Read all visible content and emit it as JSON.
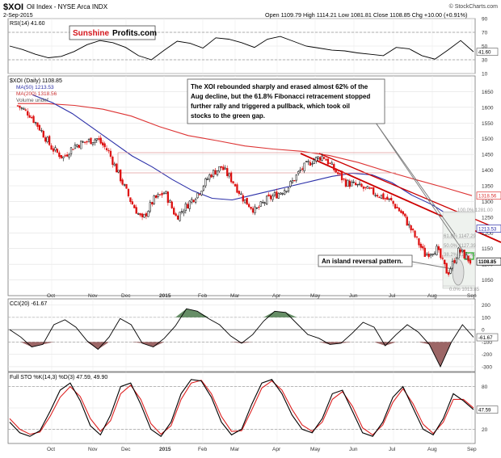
{
  "header": {
    "symbol": "$XOI",
    "name": "Oil Index - NYSE Arca INDX",
    "date": "2-Sep-2015",
    "credit": "© StockCharts.com",
    "ohlc": "Open 1109.79  High 1114.21  Low 1081.81  Close 1108.85  Chg +10.00 (+0.91%)"
  },
  "logo": {
    "part1": "Sunshine",
    "part2": "Profits.com"
  },
  "annotations": {
    "main_note": [
      "The XOI rebounded sharply and erased almost 62% of the",
      "Aug decline, but the 61.8% Fibonacci retracement stopped",
      "further rally and triggered a pullback, which took oil",
      "stocks to the green gap."
    ],
    "island_note": "An island reversal pattern."
  },
  "chart_data": [
    {
      "type": "line",
      "panel": "RSI",
      "title": "RSI(14) 41.60",
      "y_ticks": [
        10,
        30,
        50,
        70,
        90
      ],
      "ylim": [
        10,
        90
      ],
      "current_label": "41.60",
      "x_labels": [
        "Oct",
        "Nov",
        "Dec",
        "2015",
        "Feb",
        "Mar",
        "Apr",
        "May",
        "Jun",
        "Jul",
        "Aug",
        "Sep"
      ],
      "values": [
        50,
        45,
        38,
        33,
        35,
        42,
        52,
        58,
        55,
        48,
        36,
        30,
        44,
        57,
        54,
        47,
        62,
        60,
        55,
        48,
        60,
        64,
        57,
        50,
        47,
        44,
        43,
        40,
        38,
        36,
        48,
        46,
        36,
        31,
        44,
        58,
        41.6
      ]
    },
    {
      "type": "line",
      "panel": "Price",
      "legend": [
        "$XOI (Daily) 1108.85",
        "MA(50) 1213.53",
        "MA(200) 1318.56",
        "Volume undef"
      ],
      "y_ticks": [
        1050,
        1100,
        1150,
        1200,
        1250,
        1300,
        1350,
        1400,
        1450,
        1500,
        1550,
        1600,
        1650
      ],
      "ylim": [
        1000,
        1700
      ],
      "x_labels": [
        "Oct",
        "Nov",
        "Dec",
        "2015",
        "Feb",
        "Mar",
        "Apr",
        "May",
        "Jun",
        "Jul",
        "Aug",
        "Sep"
      ],
      "series": [
        {
          "name": "$XOI (Daily)",
          "values": [
            1605,
            1580,
            1530,
            1470,
            1440,
            1478,
            1490,
            1500,
            1460,
            1380,
            1300,
            1240,
            1305,
            1330,
            1250,
            1290,
            1330,
            1385,
            1410,
            1365,
            1305,
            1270,
            1305,
            1325,
            1350,
            1400,
            1430,
            1445,
            1400,
            1360,
            1350,
            1335,
            1320,
            1300,
            1260,
            1195,
            1130,
            1150,
            1070,
            1145,
            1108.85
          ]
        },
        {
          "name": "MA(50)",
          "values": [
            1640,
            1615,
            1580,
            1535,
            1490,
            1445,
            1410,
            1370,
            1335,
            1310,
            1305,
            1320,
            1335,
            1350,
            1365,
            1380,
            1390,
            1385,
            1360,
            1320,
            1290,
            1250,
            1213.53
          ]
        },
        {
          "name": "MA(200)",
          "values": [
            1612,
            1612,
            1606,
            1594,
            1572,
            1538,
            1510,
            1494,
            1477,
            1467,
            1460,
            1446,
            1424,
            1396,
            1370,
            1345,
            1318.56
          ]
        }
      ],
      "fib_levels": [
        "100.0% 1281.00",
        "61.8% 1147.29",
        "50.0% 1127.39",
        "38.2% 1107.49",
        "0.0% 1013.85"
      ],
      "right_labels": [
        "1318.56",
        "1213.53",
        "1108.85"
      ]
    },
    {
      "type": "line",
      "panel": "CCI",
      "title": "CCI(20) -61.67",
      "y_ticks": [
        -300,
        -200,
        -100,
        0,
        100,
        200
      ],
      "ylim": [
        -340,
        250
      ],
      "current_label": "-61.67",
      "x_labels": [
        "Oct",
        "Nov",
        "Dec",
        "2015",
        "Feb",
        "Mar",
        "Apr",
        "May",
        "Jun",
        "Jul",
        "Aug",
        "Sep"
      ],
      "values": [
        0,
        -60,
        -140,
        -120,
        40,
        80,
        20,
        -90,
        -160,
        -60,
        90,
        40,
        -110,
        -140,
        -70,
        30,
        170,
        150,
        90,
        40,
        -50,
        -110,
        -40,
        70,
        150,
        140,
        50,
        -40,
        -70,
        -120,
        -110,
        -30,
        60,
        20,
        -130,
        -40,
        40,
        -20,
        -120,
        -300,
        -100,
        40,
        -61.67
      ]
    },
    {
      "type": "line",
      "panel": "Full STO",
      "title": "Full STO %K(14,3) %D(3) 47.59, 49.90",
      "y_ticks": [
        20,
        50,
        80
      ],
      "ylim": [
        0,
        100
      ],
      "current_label": "47.59",
      "x_labels": [
        "Oct",
        "Nov",
        "Dec",
        "2015",
        "Feb",
        "Mar",
        "Apr",
        "May",
        "Jun",
        "Jul",
        "Aug",
        "Sep"
      ],
      "series": [
        {
          "name": "%K(14,3)",
          "values": [
            30,
            15,
            10,
            18,
            45,
            75,
            85,
            60,
            25,
            12,
            40,
            80,
            85,
            55,
            20,
            10,
            30,
            70,
            90,
            88,
            65,
            30,
            12,
            20,
            55,
            85,
            90,
            70,
            40,
            20,
            15,
            35,
            70,
            75,
            45,
            15,
            10,
            30,
            65,
            80,
            50,
            20,
            12,
            35,
            70,
            60,
            47.59
          ]
        },
        {
          "name": "%D(3)",
          "values": [
            35,
            20,
            13,
            16,
            38,
            65,
            80,
            66,
            35,
            17,
            32,
            70,
            82,
            62,
            28,
            13,
            25,
            62,
            85,
            89,
            70,
            38,
            17,
            18,
            47,
            78,
            88,
            75,
            48,
            26,
            17,
            30,
            62,
            73,
            52,
            22,
            12,
            26,
            58,
            77,
            56,
            27,
            14,
            30,
            62,
            62,
            49.9
          ]
        }
      ]
    }
  ]
}
